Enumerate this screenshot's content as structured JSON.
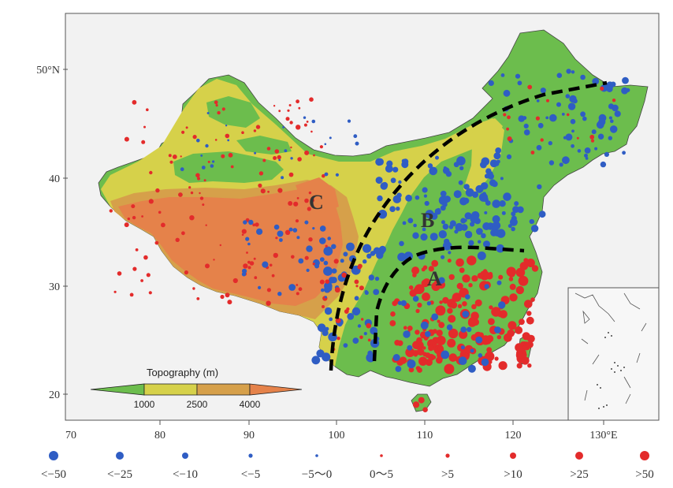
{
  "map": {
    "y_axis_labels": [
      "50°N",
      "40",
      "30",
      "20"
    ],
    "x_axis_labels": [
      "70",
      "80",
      "90",
      "100",
      "110",
      "120",
      "130°E"
    ],
    "region_labels": [
      "A",
      "B",
      "C"
    ],
    "colors": {
      "frame_bg": "#f2f2f2",
      "green": "#6cbd4d",
      "yellow": "#d6d14a",
      "tan": "#d6a04a",
      "orange": "#e5824a",
      "dot_blue": "#2f5dc4",
      "dot_red": "#e32b2b",
      "boundary_line": "#000000"
    }
  },
  "topography_legend": {
    "title": "Topography (m)",
    "ticks": [
      "1000",
      "2500",
      "4000"
    ]
  },
  "dot_legend": {
    "items": [
      {
        "label": "<−50",
        "color": "#2f5dc4",
        "size": 6
      },
      {
        "label": "<−25",
        "color": "#2f5dc4",
        "size": 5
      },
      {
        "label": "<−10",
        "color": "#2f5dc4",
        "size": 4
      },
      {
        "label": "<−5",
        "color": "#2f5dc4",
        "size": 2.6
      },
      {
        "label": "−5～0",
        "color": "#2f5dc4",
        "size": 1.8
      },
      {
        "label": "0～5",
        "color": "#e32b2b",
        "size": 1.8
      },
      {
        "label": ">5",
        "color": "#e32b2b",
        "size": 2.6
      },
      {
        "label": ">10",
        "color": "#e32b2b",
        "size": 4
      },
      {
        "label": ">25",
        "color": "#e32b2b",
        "size": 5
      },
      {
        "label": ">50",
        "color": "#e32b2b",
        "size": 6
      }
    ]
  }
}
